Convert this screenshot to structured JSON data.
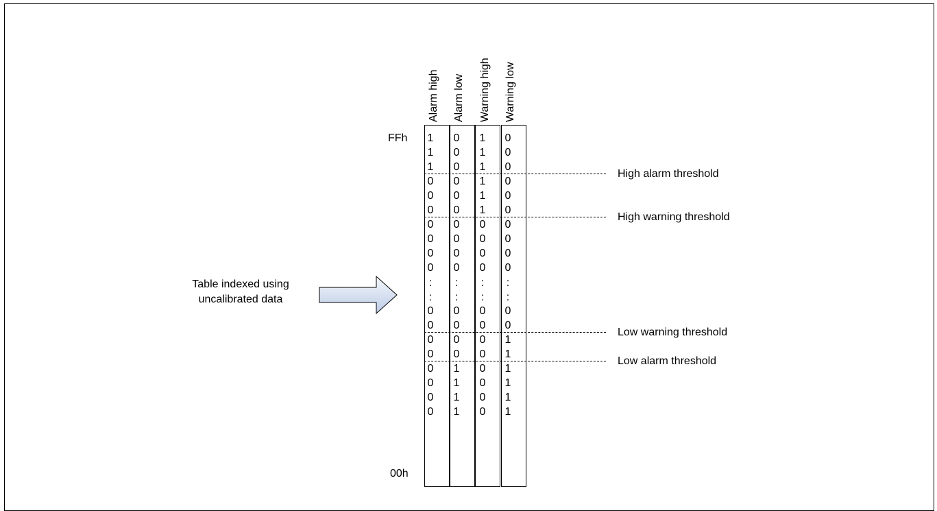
{
  "diagram": {
    "columns": [
      "Alarm high",
      "Alarm low",
      "Warning high",
      "Warning low"
    ],
    "range_top_label": "FFh",
    "range_bottom_label": "00h",
    "rows": [
      [
        "1",
        "0",
        "1",
        "0"
      ],
      [
        "1",
        "0",
        "1",
        "0"
      ],
      [
        "1",
        "0",
        "1",
        "0"
      ],
      [
        "0",
        "0",
        "1",
        "0"
      ],
      [
        "0",
        "0",
        "1",
        "0"
      ],
      [
        "0",
        "0",
        "1",
        "0"
      ],
      [
        "0",
        "0",
        "0",
        "0"
      ],
      [
        "0",
        "0",
        "0",
        "0"
      ],
      [
        "0",
        "0",
        "0",
        "0"
      ],
      [
        "0",
        "0",
        "0",
        "0"
      ],
      [
        ":",
        ":",
        ":",
        ":"
      ],
      [
        ":",
        ":",
        ":",
        ":"
      ],
      [
        "0",
        "0",
        "0",
        "0"
      ],
      [
        "0",
        "0",
        "0",
        "0"
      ],
      [
        "0",
        "0",
        "0",
        "1"
      ],
      [
        "0",
        "0",
        "0",
        "1"
      ],
      [
        "0",
        "1",
        "0",
        "1"
      ],
      [
        "0",
        "1",
        "0",
        "1"
      ],
      [
        "0",
        "1",
        "0",
        "1"
      ],
      [
        "0",
        "1",
        "0",
        "1"
      ]
    ],
    "thresholds": [
      {
        "label": "High alarm threshold",
        "after_row": 3
      },
      {
        "label": "High warning threshold",
        "after_row": 6
      },
      {
        "label": "Low warning threshold",
        "after_row": 14
      },
      {
        "label": "Low alarm threshold",
        "after_row": 16
      }
    ],
    "index_caption": [
      "Table indexed using",
      "uncalibrated data"
    ]
  }
}
